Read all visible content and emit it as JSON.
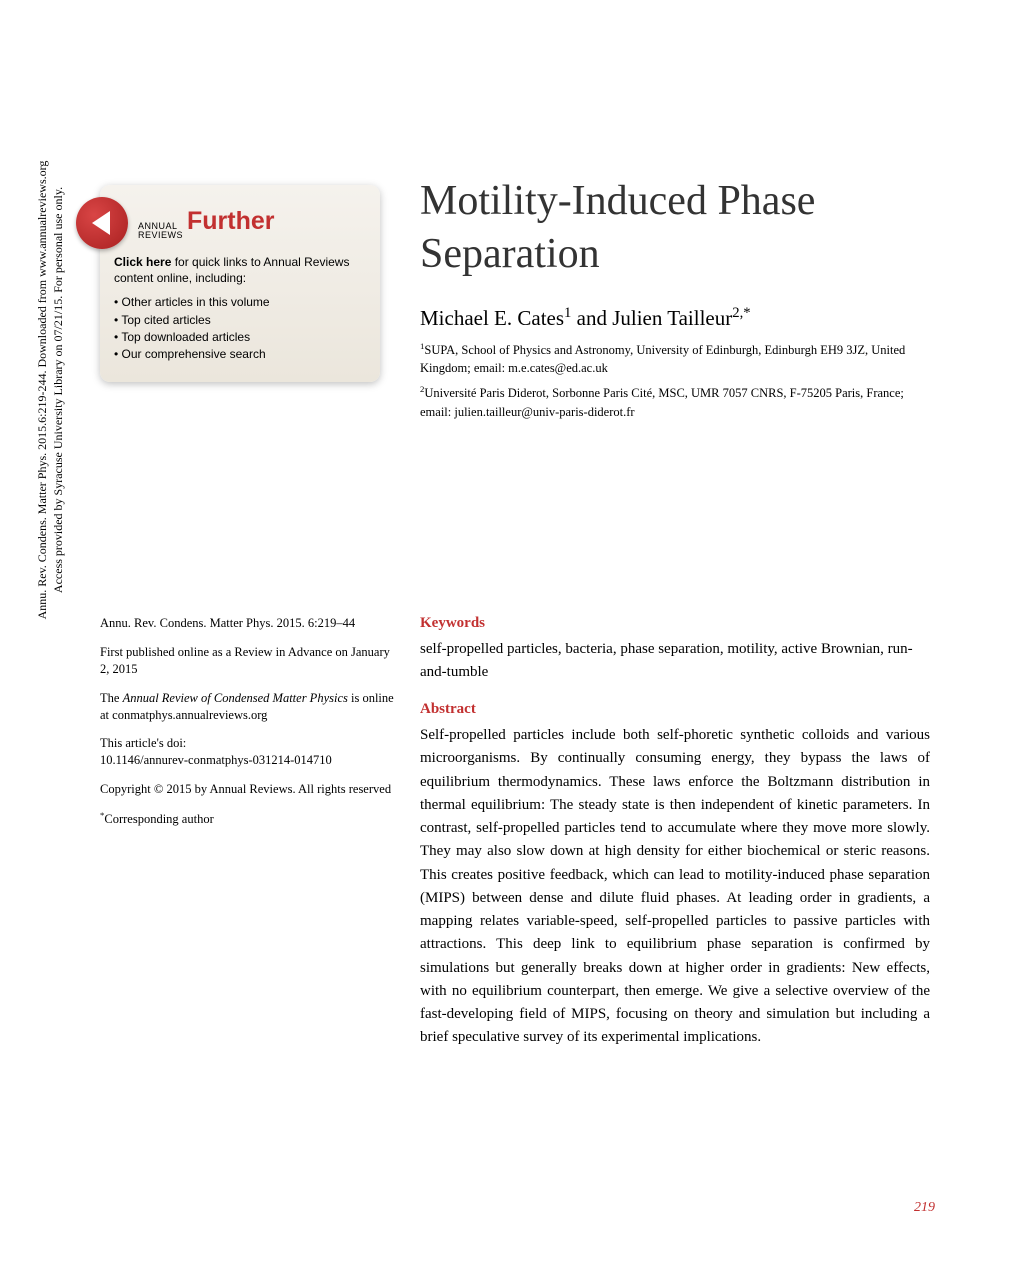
{
  "side_note": {
    "line1": "Annu. Rev. Condens. Matter Phys. 2015.6:219-244. Downloaded from www.annualreviews.org",
    "line2": "Access provided by Syracuse University Library on 07/21/15. For personal use only."
  },
  "widget": {
    "brand_line1": "ANNUAL",
    "brand_line2": "REVIEWS",
    "further": "Further",
    "click_here": "Click here",
    "subtext": " for quick links to Annual Reviews content online, including:",
    "items": [
      "Other articles in this volume",
      "Top cited articles",
      "Top downloaded articles",
      "Our comprehensive search"
    ]
  },
  "title": "Motility-Induced Phase Separation",
  "authors_html": "Michael E. Cates¹ and Julien Tailleur²,*",
  "author1": "Michael E. Cates",
  "author2": "Julien Tailleur",
  "and": " and ",
  "sup1": "1",
  "sup2": "2,",
  "star": "*",
  "affil1_sup": "1",
  "affil1": "SUPA, School of Physics and Astronomy, University of Edinburgh, Edinburgh EH9 3JZ, United Kingdom; email: m.e.cates@ed.ac.uk",
  "affil2_sup": "2",
  "affil2": "Université Paris Diderot, Sorbonne Paris Cité, MSC, UMR 7057 CNRS, F-75205 Paris, France; email: julien.tailleur@univ-paris-diderot.fr",
  "meta": {
    "citation": "Annu. Rev. Condens. Matter Phys. 2015. 6:219–44",
    "first_pub": "First published online as a Review in Advance on January 2, 2015",
    "journal_line_pre": "The ",
    "journal_name": "Annual Review of Condensed Matter Physics",
    "journal_line_post": " is online at conmatphys.annualreviews.org",
    "doi_label": "This article's doi:",
    "doi": "10.1146/annurev-conmatphys-031214-014710",
    "copyright": "Copyright © 2015 by Annual Reviews. All rights reserved",
    "corr_star": "*",
    "corresponding": "Corresponding author"
  },
  "keywords_heading": "Keywords",
  "keywords": "self-propelled particles, bacteria, phase separation, motility, active Brownian, run-and-tumble",
  "abstract_heading": "Abstract",
  "abstract": "Self-propelled particles include both self-phoretic synthetic colloids and various microorganisms. By continually consuming energy, they bypass the laws of equilibrium thermodynamics. These laws enforce the Boltzmann distribution in thermal equilibrium: The steady state is then independent of kinetic parameters. In contrast, self-propelled particles tend to accumulate where they move more slowly. They may also slow down at high density for either biochemical or steric reasons. This creates positive feedback, which can lead to motility-induced phase separation (MIPS) between dense and dilute fluid phases. At leading order in gradients, a mapping relates variable-speed, self-propelled particles to passive particles with attractions. This deep link to equilibrium phase separation is confirmed by simulations but generally breaks down at higher order in gradients: New effects, with no equilibrium counterpart, then emerge. We give a selective overview of the fast-developing field of MIPS, focusing on theory and simulation but including a brief speculative survey of its experimental implications.",
  "page_number": "219",
  "colors": {
    "accent": "#c23030",
    "text": "#000000",
    "widget_bg_top": "#f5f2ed",
    "widget_bg_bottom": "#ebe6dc",
    "play_button": "#c23030"
  }
}
